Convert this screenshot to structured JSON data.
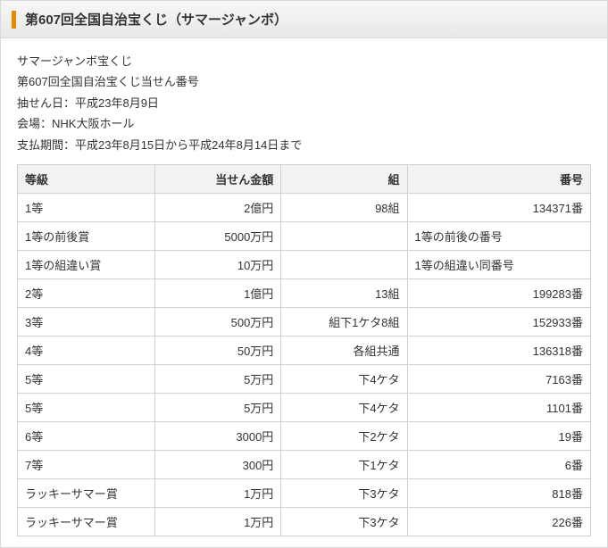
{
  "title": "第607回全国自治宝くじ（サマージャンボ）",
  "info": {
    "line1": "サマージャンボ宝くじ",
    "line2": "第607回全国自治宝くじ当せん番号",
    "line3": "抽せん日：平成23年8月9日",
    "line4": "会場：NHK大阪ホール",
    "line5": "支払期間：平成23年8月15日から平成24年8月14日まで"
  },
  "table": {
    "headers": {
      "grade": "等級",
      "amount": "当せん金額",
      "kumi": "組",
      "num": "番号"
    },
    "rows": [
      {
        "grade": "1等",
        "amount": "2億円",
        "kumi": "98組",
        "num": "134371番",
        "numAlign": "right"
      },
      {
        "grade": "1等の前後賞",
        "amount": "5000万円",
        "kumi": "",
        "num": "1等の前後の番号",
        "numAlign": "left"
      },
      {
        "grade": "1等の組違い賞",
        "amount": "10万円",
        "kumi": "",
        "num": "1等の組違い同番号",
        "numAlign": "left"
      },
      {
        "grade": "2等",
        "amount": "1億円",
        "kumi": "13組",
        "num": "199283番",
        "numAlign": "right"
      },
      {
        "grade": "3等",
        "amount": "500万円",
        "kumi": "組下1ケタ8組",
        "num": "152933番",
        "numAlign": "right"
      },
      {
        "grade": "4等",
        "amount": "50万円",
        "kumi": "各組共通",
        "num": "136318番",
        "numAlign": "right"
      },
      {
        "grade": "5等",
        "amount": "5万円",
        "kumi": "下4ケタ",
        "num": "7163番",
        "numAlign": "right"
      },
      {
        "grade": "5等",
        "amount": "5万円",
        "kumi": "下4ケタ",
        "num": "1101番",
        "numAlign": "right"
      },
      {
        "grade": "6等",
        "amount": "3000円",
        "kumi": "下2ケタ",
        "num": "19番",
        "numAlign": "right"
      },
      {
        "grade": "7等",
        "amount": "300円",
        "kumi": "下1ケタ",
        "num": "6番",
        "numAlign": "right"
      },
      {
        "grade": "ラッキーサマー賞",
        "amount": "1万円",
        "kumi": "下3ケタ",
        "num": "818番",
        "numAlign": "right"
      },
      {
        "grade": "ラッキーサマー賞",
        "amount": "1万円",
        "kumi": "下3ケタ",
        "num": "226番",
        "numAlign": "right"
      }
    ]
  }
}
